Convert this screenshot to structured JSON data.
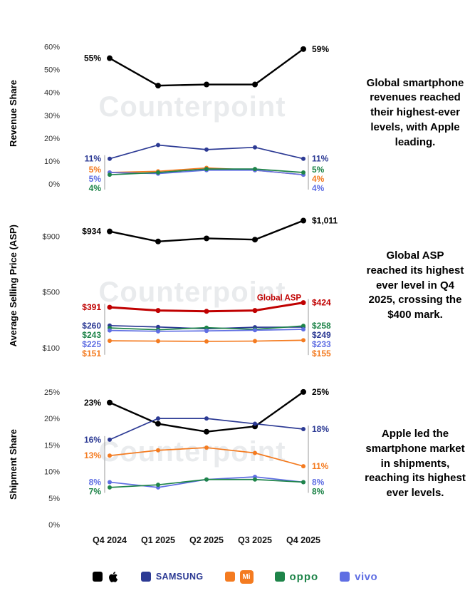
{
  "watermark": "Counterpoint",
  "categories": [
    "Q4 2024",
    "Q1 2025",
    "Q2 2025",
    "Q3 2025",
    "Q4 2025"
  ],
  "legend": [
    {
      "name": "Apple",
      "label": "",
      "color": "#000000"
    },
    {
      "name": "Samsung",
      "label": "SAMSUNG",
      "color": "#2c3a94"
    },
    {
      "name": "Xiaomi",
      "label": "Mi",
      "color": "#f47b20"
    },
    {
      "name": "OPPO",
      "label": "oppo",
      "color": "#1e8449"
    },
    {
      "name": "vivo",
      "label": "vivo",
      "color": "#5f6ee3"
    }
  ],
  "chart_data": [
    {
      "type": "line",
      "ylabel": "Revenue Share",
      "ylim": [
        0,
        63
      ],
      "yticks": [
        {
          "v": 0,
          "t": "0%"
        },
        {
          "v": 10,
          "t": "10%"
        },
        {
          "v": 20,
          "t": "20%"
        },
        {
          "v": 30,
          "t": "30%"
        },
        {
          "v": 40,
          "t": "40%"
        },
        {
          "v": 50,
          "t": "50%"
        },
        {
          "v": 60,
          "t": "60%"
        }
      ],
      "series": [
        {
          "name": "Apple",
          "color": "#000000",
          "values": [
            55,
            43,
            43.5,
            43.5,
            59
          ],
          "left": "55%",
          "right": "59%",
          "width": 2.4,
          "r": 4
        },
        {
          "name": "Samsung",
          "color": "#2c3a94",
          "values": [
            11,
            17,
            15,
            16,
            11
          ],
          "left": "11%",
          "right": "11%"
        },
        {
          "name": "Xiaomi",
          "color": "#f47b20",
          "values": [
            5,
            5.5,
            7,
            6,
            4
          ],
          "left": "5%",
          "right": "4%"
        },
        {
          "name": "vivo",
          "color": "#5f6ee3",
          "values": [
            5,
            4.5,
            6,
            6,
            4
          ],
          "left": "5%",
          "right": "4%"
        },
        {
          "name": "OPPO",
          "color": "#1e8449",
          "values": [
            4,
            5,
            6.5,
            6.5,
            5
          ],
          "left": "4%",
          "right": "5%"
        }
      ],
      "annotation": "Global smartphone revenues reached their highest-ever levels, with Apple leading."
    },
    {
      "type": "line",
      "ylabel": "Average Selling Price (ASP)",
      "ylim": [
        60,
        1075
      ],
      "yticks": [
        {
          "v": 100,
          "t": "$100"
        },
        {
          "v": 500,
          "t": "$500"
        },
        {
          "v": 900,
          "t": "$900"
        }
      ],
      "series": [
        {
          "name": "Apple",
          "color": "#000000",
          "values": [
            934,
            862,
            884,
            875,
            1011
          ],
          "left": "$934",
          "right": "$1,011",
          "width": 2.4,
          "r": 4
        },
        {
          "name": "Global ASP",
          "color": "#c00000",
          "values": [
            391,
            368,
            362,
            368,
            424
          ],
          "left": "$391",
          "right": "$424",
          "width": 3,
          "r": 3.5,
          "inline_label": "Global ASP"
        },
        {
          "name": "Samsung",
          "color": "#2c3a94",
          "values": [
            260,
            250,
            237,
            248,
            249
          ],
          "left": "$260",
          "right": "$249"
        },
        {
          "name": "OPPO",
          "color": "#1e8449",
          "values": [
            243,
            230,
            245,
            233,
            258
          ],
          "left": "$243",
          "right": "$258"
        },
        {
          "name": "vivo",
          "color": "#5f6ee3",
          "values": [
            225,
            219,
            222,
            227,
            233
          ],
          "left": "$225",
          "right": "$233"
        },
        {
          "name": "Xiaomi",
          "color": "#f47b20",
          "values": [
            151,
            149,
            147,
            149,
            155
          ],
          "left": "$151",
          "right": "$155"
        }
      ],
      "annotation": "Global ASP reached its highest ever level in Q4 2025, crossing the $400 mark."
    },
    {
      "type": "line",
      "ylabel": "Shipment Share",
      "ylim": [
        0,
        27
      ],
      "show_x_labels": true,
      "yticks": [
        {
          "v": 0,
          "t": "0%"
        },
        {
          "v": 5,
          "t": "5%"
        },
        {
          "v": 10,
          "t": "10%"
        },
        {
          "v": 15,
          "t": "15%"
        },
        {
          "v": 20,
          "t": "20%"
        },
        {
          "v": 25,
          "t": "25%"
        }
      ],
      "series": [
        {
          "name": "Apple",
          "color": "#000000",
          "values": [
            23,
            19,
            17.5,
            18.5,
            25
          ],
          "left": "23%",
          "right": "25%",
          "width": 2.4,
          "r": 4
        },
        {
          "name": "Samsung",
          "color": "#2c3a94",
          "values": [
            16,
            20,
            20,
            19,
            18
          ],
          "left": "16%",
          "right": "18%"
        },
        {
          "name": "Xiaomi",
          "color": "#f47b20",
          "values": [
            13,
            14,
            14.5,
            13.5,
            11
          ],
          "left": "13%",
          "right": "11%"
        },
        {
          "name": "vivo",
          "color": "#5f6ee3",
          "values": [
            8,
            7,
            8.5,
            9,
            8
          ],
          "left": "8%",
          "right": "8%"
        },
        {
          "name": "OPPO",
          "color": "#1e8449",
          "values": [
            7,
            7.5,
            8.5,
            8.5,
            8
          ],
          "left": "7%",
          "right": "8%"
        }
      ],
      "annotation": "Apple led the smartphone market in shipments, reaching its highest ever levels."
    }
  ]
}
